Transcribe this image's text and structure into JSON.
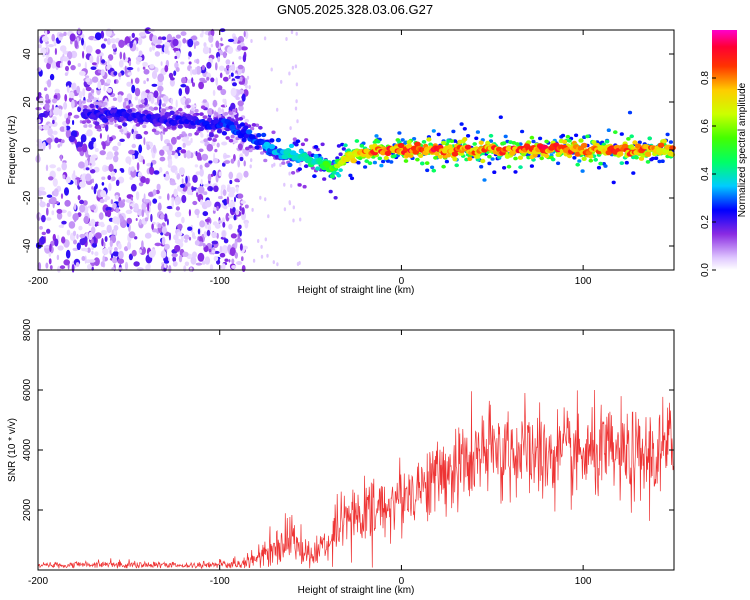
{
  "chart_data": [
    {
      "type": "heatmap",
      "title": "GN05.2025.328.03.06.G27",
      "xlabel": "Height of straight line (km)",
      "ylabel": "Frequency (Hz)",
      "xlim": [
        -200,
        150
      ],
      "ylim": [
        -50,
        50
      ],
      "xticks": [
        "-200",
        "-100",
        "0",
        "100"
      ],
      "xtick_values": [
        -200,
        -100,
        0,
        100
      ],
      "yticks": [
        "-40",
        "-20",
        "0",
        "20",
        "40"
      ],
      "ytick_values": [
        -40,
        -20,
        0,
        20,
        40
      ],
      "colorbar": {
        "label": "Normalized spectral amplitude",
        "range": [
          0,
          1
        ],
        "ticks": [
          "0.0",
          "0.2",
          "0.4",
          "0.6",
          "0.8"
        ],
        "tick_values": [
          0,
          0.2,
          0.4,
          0.6,
          0.8
        ]
      },
      "ridge": {
        "description_values": "frequency of dominant component vs height",
        "x": [
          -160,
          -120,
          -95,
          -85,
          -75,
          -65,
          -55,
          -45,
          -38,
          -30,
          -20,
          -10,
          0,
          20,
          50,
          80,
          110,
          130,
          150
        ],
        "y": [
          15,
          12,
          10,
          6,
          2,
          -2,
          -3,
          -5,
          -8,
          -3,
          -1,
          0,
          0,
          0,
          0,
          0,
          0,
          0,
          0
        ],
        "amplitude": [
          0.25,
          0.25,
          0.3,
          0.3,
          0.35,
          0.4,
          0.45,
          0.5,
          0.6,
          0.75,
          0.9,
          0.95,
          0.95,
          0.95,
          0.9,
          0.95,
          0.9,
          0.9,
          0.85
        ]
      },
      "noise_region_x": [
        -200,
        -85
      ]
    },
    {
      "type": "line",
      "xlabel": "Height of straight line (km)",
      "ylabel": "SNR (10 * v/v)",
      "xlim": [
        -200,
        150
      ],
      "ylim": [
        0,
        8000
      ],
      "xticks": [
        "-200",
        "-100",
        "0",
        "100"
      ],
      "xtick_values": [
        -200,
        -100,
        0,
        100
      ],
      "yticks": [
        "2000",
        "4000",
        "6000",
        "8000"
      ],
      "ytick_values": [
        2000,
        4000,
        6000,
        8000
      ],
      "color": "#ee3333",
      "envelope": {
        "x": [
          -200,
          -160,
          -120,
          -90,
          -80,
          -70,
          -60,
          -50,
          -40,
          -30,
          -20,
          -10,
          0,
          10,
          20,
          30,
          40,
          50,
          60,
          70,
          80,
          90,
          100,
          110,
          120,
          130,
          140,
          150
        ],
        "mean": [
          150,
          200,
          150,
          200,
          400,
          800,
          1100,
          400,
          1000,
          1600,
          1900,
          2100,
          2400,
          2800,
          3100,
          3400,
          3700,
          3900,
          4000,
          3900,
          3800,
          3800,
          3800,
          3900,
          3800,
          3700,
          3800,
          4000
        ],
        "spread": [
          100,
          150,
          120,
          200,
          400,
          900,
          900,
          500,
          900,
          1200,
          1200,
          1200,
          1300,
          1300,
          1400,
          1600,
          1700,
          1800,
          1900,
          1800,
          1800,
          1700,
          1700,
          1700,
          1700,
          1700,
          1900,
          2200
        ]
      }
    }
  ]
}
